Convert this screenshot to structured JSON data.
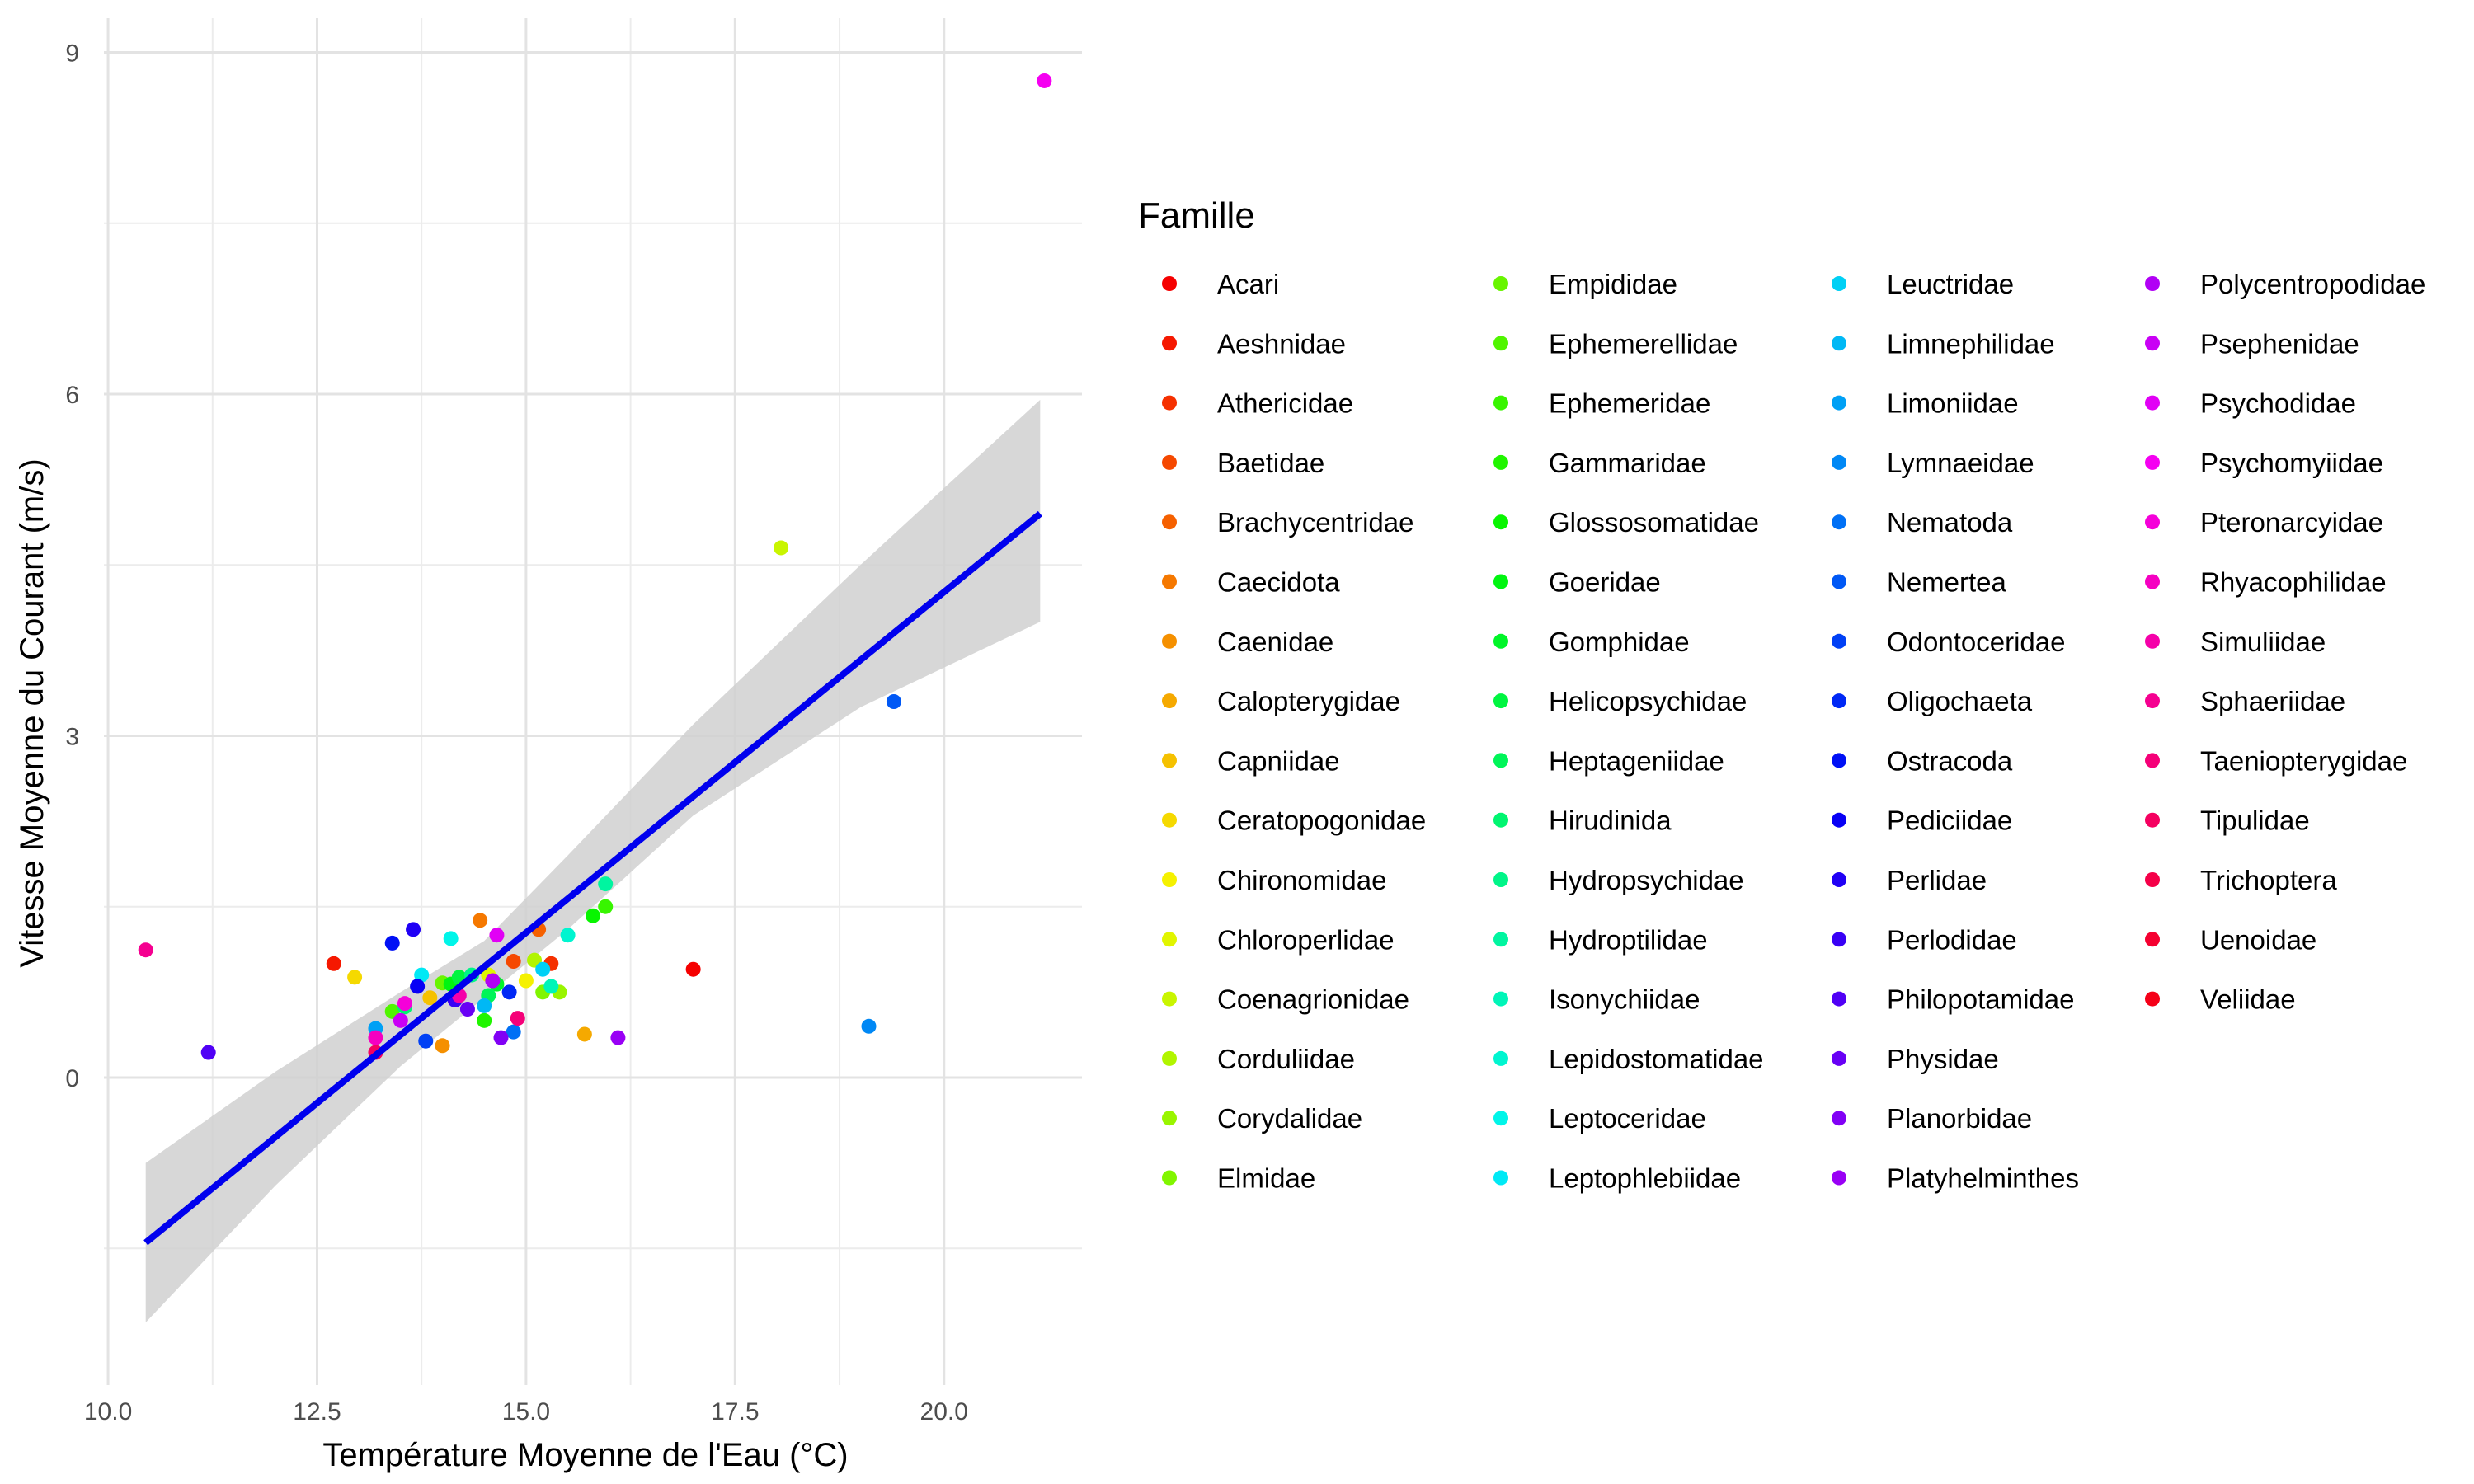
{
  "chart_data": {
    "type": "scatter",
    "title": "",
    "xlabel": "Température Moyenne de l'Eau (°C)",
    "ylabel": "Vitesse Moyenne du Courant (m/s)",
    "xlim": [
      9.95,
      21.65
    ],
    "ylim": [
      -2.7,
      9.3
    ],
    "xticks": [
      10.0,
      12.5,
      15.0,
      17.5,
      20.0
    ],
    "xtick_labels": [
      "10.0",
      "12.5",
      "15.0",
      "17.5",
      "20.0"
    ],
    "yticks": [
      0,
      3,
      6,
      9
    ],
    "ytick_labels": [
      "0",
      "3",
      "6",
      "9"
    ],
    "grid": true,
    "legend": {
      "title": "Famille",
      "position": "right",
      "columns": 4,
      "entries": [
        "Acari",
        "Aeshnidae",
        "Athericidae",
        "Baetidae",
        "Brachycentridae",
        "Caecidota",
        "Caenidae",
        "Calopterygidae",
        "Capniidae",
        "Ceratopogonidae",
        "Chironomidae",
        "Chloroperlidae",
        "Coenagrionidae",
        "Corduliidae",
        "Corydalidae",
        "Elmidae",
        "Empididae",
        "Ephemerellidae",
        "Ephemeridae",
        "Gammaridae",
        "Glossosomatidae",
        "Goeridae",
        "Gomphidae",
        "Helicopsychidae",
        "Heptageniidae",
        "Hirudinida",
        "Hydropsychidae",
        "Hydroptilidae",
        "Isonychiidae",
        "Lepidostomatidae",
        "Leptoceridae",
        "Leptophlebiidae",
        "Leuctridae",
        "Limnephilidae",
        "Limoniidae",
        "Lymnaeidae",
        "Nematoda",
        "Nemertea",
        "Odontoceridae",
        "Oligochaeta",
        "Ostracoda",
        "Pediciidae",
        "Perlidae",
        "Perlodidae",
        "Philopotamidae",
        "Physidae",
        "Planorbidae",
        "Platyhelminthes",
        "Polycentropodidae",
        "Psephenidae",
        "Psychodidae",
        "Psychomyiidae",
        "Pteronarcyidae",
        "Rhyacophilidae",
        "Simuliidae",
        "Sphaeriidae",
        "Taeniopterygidae",
        "Tipulidae",
        "Trichoptera",
        "Uenoidae",
        "Veliidae"
      ]
    },
    "regression": {
      "line": [
        [
          10.45,
          -1.45
        ],
        [
          21.15,
          4.95
        ]
      ],
      "ci_upper": [
        [
          10.45,
          -0.75
        ],
        [
          12.0,
          0.05
        ],
        [
          13.5,
          0.75
        ],
        [
          14.5,
          1.2
        ],
        [
          15.5,
          1.95
        ],
        [
          17.0,
          3.1
        ],
        [
          19.0,
          4.5
        ],
        [
          21.15,
          5.95
        ]
      ],
      "ci_lower": [
        [
          10.45,
          -2.15
        ],
        [
          12.0,
          -0.95
        ],
        [
          13.5,
          0.1
        ],
        [
          14.5,
          0.7
        ],
        [
          15.5,
          1.3
        ],
        [
          17.0,
          2.3
        ],
        [
          19.0,
          3.25
        ],
        [
          21.15,
          4.0
        ]
      ],
      "line_color": "#0000ee",
      "band_color": "#d0d0d0"
    },
    "points": [
      {
        "family": "Acari",
        "x": 17.0,
        "y": 0.95
      },
      {
        "family": "Aeshnidae",
        "x": 12.7,
        "y": 1.0
      },
      {
        "family": "Athericidae",
        "x": 15.3,
        "y": 1.0
      },
      {
        "family": "Baetidae",
        "x": 14.85,
        "y": 1.02
      },
      {
        "family": "Brachycentridae",
        "x": 15.15,
        "y": 1.3
      },
      {
        "family": "Caecidota",
        "x": 14.45,
        "y": 1.38
      },
      {
        "family": "Caenidae",
        "x": 14.0,
        "y": 0.28
      },
      {
        "family": "Calopterygidae",
        "x": 15.7,
        "y": 0.38
      },
      {
        "family": "Capniidae",
        "x": 13.85,
        "y": 0.7
      },
      {
        "family": "Ceratopogonidae",
        "x": 12.95,
        "y": 0.88
      },
      {
        "family": "Chironomidae",
        "x": 15.0,
        "y": 0.85
      },
      {
        "family": "Chloroperlidae",
        "x": 14.55,
        "y": 0.9
      },
      {
        "family": "Coenagrionidae",
        "x": 18.05,
        "y": 4.65
      },
      {
        "family": "Corduliidae",
        "x": 15.1,
        "y": 1.03
      },
      {
        "family": "Corydalidae",
        "x": 15.4,
        "y": 0.75
      },
      {
        "family": "Elmidae",
        "x": 15.2,
        "y": 0.75
      },
      {
        "family": "Empididae",
        "x": 14.0,
        "y": 0.83
      },
      {
        "family": "Ephemerellidae",
        "x": 13.4,
        "y": 0.58
      },
      {
        "family": "Ephemeridae",
        "x": 15.95,
        "y": 1.5
      },
      {
        "family": "Gammaridae",
        "x": 14.5,
        "y": 0.5
      },
      {
        "family": "Glossosomatidae",
        "x": 15.8,
        "y": 1.42
      },
      {
        "family": "Goeridae",
        "x": 14.1,
        "y": 0.82
      },
      {
        "family": "Gomphidae",
        "x": 14.65,
        "y": 0.82
      },
      {
        "family": "Helicopsychidae",
        "x": 14.2,
        "y": 0.88
      },
      {
        "family": "Heptageniidae",
        "x": 14.55,
        "y": 0.72
      },
      {
        "family": "Hirudinida",
        "x": 13.55,
        "y": 0.62
      },
      {
        "family": "Hydropsychidae",
        "x": 14.35,
        "y": 0.9
      },
      {
        "family": "Hydroptilidae",
        "x": 15.95,
        "y": 1.7
      },
      {
        "family": "Isonychiidae",
        "x": 15.3,
        "y": 0.8
      },
      {
        "family": "Lepidostomatidae",
        "x": 15.5,
        "y": 1.25
      },
      {
        "family": "Leptoceridae",
        "x": 14.1,
        "y": 1.22
      },
      {
        "family": "Leptophlebiidae",
        "x": 13.75,
        "y": 0.9
      },
      {
        "family": "Leuctridae",
        "x": 15.2,
        "y": 0.95
      },
      {
        "family": "Limnephilidae",
        "x": 14.5,
        "y": 0.63
      },
      {
        "family": "Limoniidae",
        "x": 13.2,
        "y": 0.43
      },
      {
        "family": "Lymnaeidae",
        "x": 19.1,
        "y": 0.45
      },
      {
        "family": "Nematoda",
        "x": 14.85,
        "y": 0.4
      },
      {
        "family": "Nemertea",
        "x": 19.4,
        "y": 3.3
      },
      {
        "family": "Odontoceridae",
        "x": 13.8,
        "y": 0.32
      },
      {
        "family": "Oligochaeta",
        "x": 14.8,
        "y": 0.75
      },
      {
        "family": "Ostracoda",
        "x": 13.4,
        "y": 1.18
      },
      {
        "family": "Pediciidae",
        "x": 13.7,
        "y": 0.8
      },
      {
        "family": "Perlidae",
        "x": 13.65,
        "y": 1.3
      },
      {
        "family": "Perlodidae",
        "x": 14.15,
        "y": 0.68
      },
      {
        "family": "Philopotamidae",
        "x": 11.2,
        "y": 0.22
      },
      {
        "family": "Physidae",
        "x": 14.3,
        "y": 0.6
      },
      {
        "family": "Planorbidae",
        "x": 14.7,
        "y": 0.35
      },
      {
        "family": "Platyhelminthes",
        "x": 16.1,
        "y": 0.35
      },
      {
        "family": "Polycentropodidae",
        "x": 14.6,
        "y": 0.85
      },
      {
        "family": "Psephenidae",
        "x": 13.5,
        "y": 0.5
      },
      {
        "family": "Psychodidae",
        "x": 14.65,
        "y": 1.25
      },
      {
        "family": "Psychomyiidae",
        "x": 21.2,
        "y": 8.75
      },
      {
        "family": "Pteronarcyidae",
        "x": 13.55,
        "y": 0.65
      },
      {
        "family": "Rhyacophilidae",
        "x": 13.2,
        "y": 0.35
      },
      {
        "family": "Simuliidae",
        "x": 14.2,
        "y": 0.72
      },
      {
        "family": "Sphaeriidae",
        "x": 10.45,
        "y": 1.12
      },
      {
        "family": "Taeniopterygidae",
        "x": 14.9,
        "y": 0.52
      },
      {
        "family": "Tipulidae",
        "x": 13.2,
        "y": 0.22
      }
    ]
  }
}
